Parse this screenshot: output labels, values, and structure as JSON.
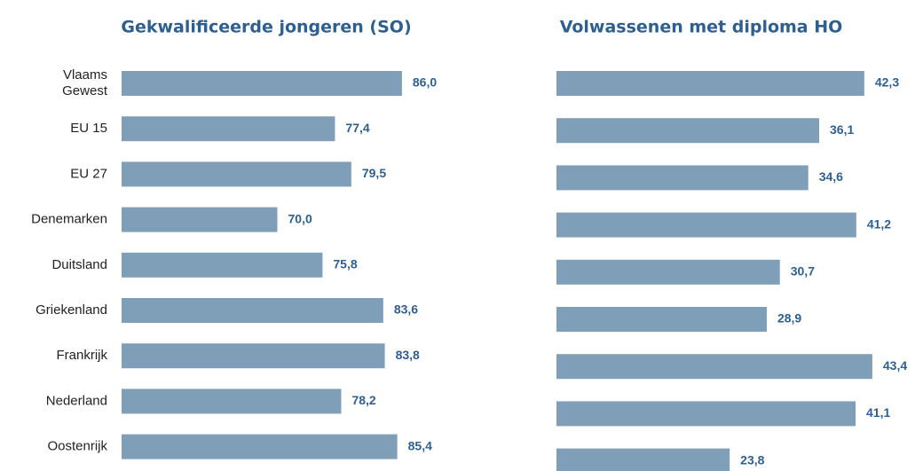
{
  "chart_data": [
    {
      "type": "bar",
      "orientation": "horizontal",
      "title": "Gekwalificeerde jongeren (SO)",
      "categories": [
        "Vlaams Gewest",
        "EU 15",
        "EU 27",
        "Denemarken",
        "Duitsland",
        "Griekenland",
        "Frankrijk",
        "Nederland",
        "Oostenrijk"
      ],
      "values": [
        86.0,
        77.4,
        79.5,
        70.0,
        75.8,
        83.6,
        83.8,
        78.2,
        85.4
      ],
      "value_labels": [
        "86,0",
        "77,4",
        "79,5",
        "70,0",
        "75,8",
        "83,6",
        "83,8",
        "78,2",
        "85,4"
      ],
      "color": "#7f9fb9",
      "xlim": [
        50,
        90
      ]
    },
    {
      "type": "bar",
      "orientation": "horizontal",
      "title": "Volwassenen met diploma HO",
      "categories": [
        null,
        null,
        null,
        null,
        null,
        null,
        null,
        null,
        null
      ],
      "values": [
        42.3,
        36.1,
        34.6,
        41.2,
        30.7,
        28.9,
        43.4,
        41.1,
        23.8
      ],
      "value_labels": [
        "42,3",
        "36,1",
        "34,6",
        "41,2",
        "30,7",
        "28,9",
        "43,4",
        "41,1",
        "23,8"
      ],
      "color": "#7f9fb9",
      "xlim": [
        0,
        50
      ]
    }
  ]
}
